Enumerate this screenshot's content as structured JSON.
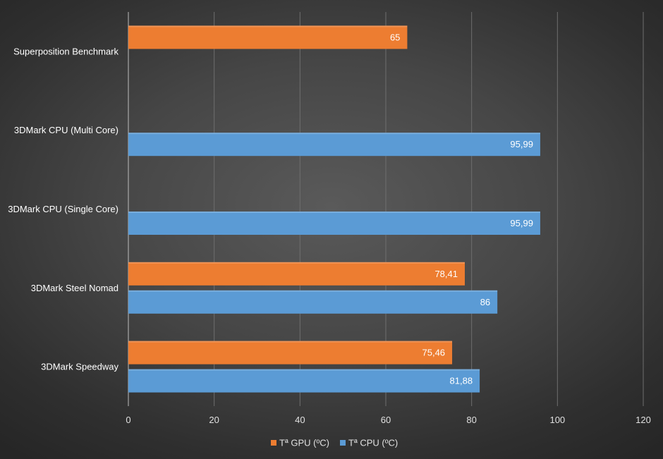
{
  "chart_data": {
    "type": "bar",
    "orientation": "horizontal",
    "categories": [
      "Superposition Benchmark",
      "3DMark CPU (Multi Core)",
      "3DMark CPU (Single Core)",
      "3DMark Steel Nomad",
      "3DMark Speedway"
    ],
    "series": [
      {
        "name": "Tª GPU (ºC)",
        "color": "#ED7D31",
        "values": [
          65,
          null,
          null,
          78.41,
          75.46
        ],
        "labels": [
          "65",
          "",
          "",
          "78,41",
          "75,46"
        ]
      },
      {
        "name": "Tª CPU (ºC)",
        "color": "#5B9BD5",
        "values": [
          null,
          95.99,
          95.99,
          86,
          81.88
        ],
        "labels": [
          "",
          "95,99",
          "95,99",
          "86",
          "81,88"
        ]
      }
    ],
    "xlim": [
      0,
      120
    ],
    "xticks": [
      0,
      20,
      40,
      60,
      80,
      100,
      120
    ],
    "grid": "vertical",
    "legend_position": "bottom"
  }
}
